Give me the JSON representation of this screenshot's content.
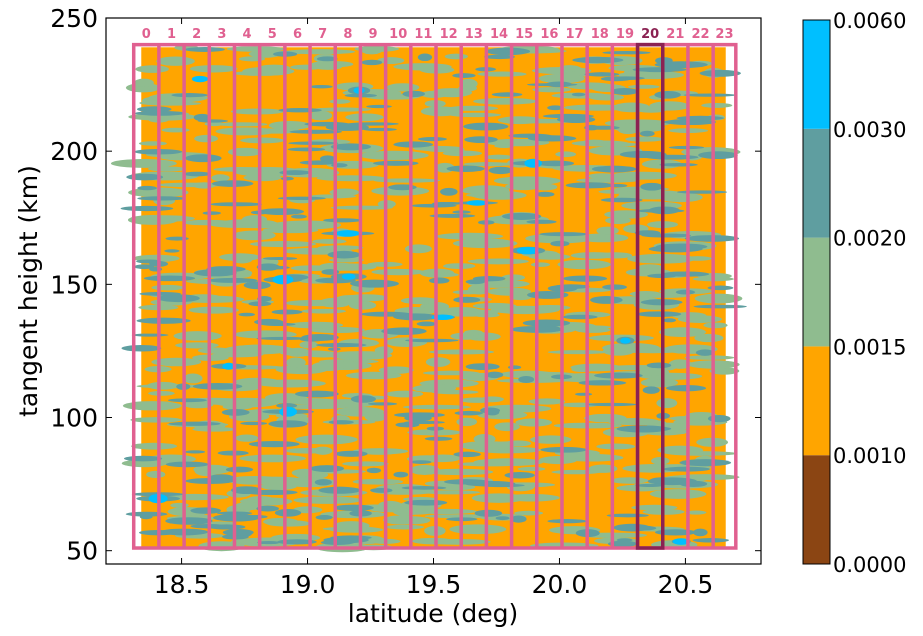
{
  "chart_data": {
    "type": "heatmap",
    "title": "",
    "xlabel": "latitude (deg)",
    "ylabel": "tangent height (km)",
    "xlim": [
      18.2,
      20.8
    ],
    "ylim": [
      45,
      250
    ],
    "x_ticks": [
      18.5,
      19.0,
      19.5,
      20.0,
      20.5
    ],
    "x_tick_labels": [
      "18.5",
      "19.0",
      "19.5",
      "20.0",
      "20.5"
    ],
    "y_ticks": [
      50,
      100,
      150,
      200,
      250
    ],
    "y_tick_labels": [
      "50",
      "100",
      "150",
      "200",
      "250"
    ],
    "data_extent": {
      "lat": [
        18.34,
        20.66
      ],
      "height": [
        51,
        239
      ]
    },
    "colorbar": {
      "levels": [
        0.0,
        0.001,
        0.0015,
        0.002,
        0.003,
        0.006
      ],
      "level_labels": [
        "0.0000",
        "0.0010",
        "0.0015",
        "0.0020",
        "0.0030",
        "0.0060"
      ],
      "colors": [
        "#8b4513",
        "#ffa500",
        "#8fbc8f",
        "#5f9ea0",
        "#00bfff"
      ]
    },
    "dominant_level_index": 1,
    "strips": {
      "labels": [
        "0",
        "1",
        "2",
        "3",
        "4",
        "5",
        "6",
        "7",
        "8",
        "9",
        "10",
        "11",
        "12",
        "13",
        "14",
        "15",
        "16",
        "17",
        "18",
        "19",
        "20",
        "21",
        "22",
        "23"
      ],
      "lat_start": 18.31,
      "lat_end": 20.7,
      "lat_boundaries": [
        18.31,
        18.41,
        18.51,
        18.61,
        18.71,
        18.81,
        18.91,
        19.01,
        19.11,
        19.21,
        19.31,
        19.41,
        19.51,
        19.61,
        19.71,
        19.81,
        19.91,
        20.01,
        20.11,
        20.21,
        20.31,
        20.41,
        20.51,
        20.61,
        20.7
      ],
      "height_range": [
        51,
        240
      ],
      "highlighted_index": 20,
      "color": "#e06090",
      "highlight_color": "#8b2252"
    }
  }
}
